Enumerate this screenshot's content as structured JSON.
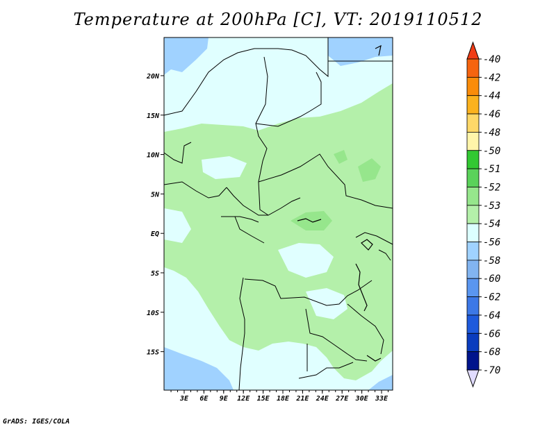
{
  "title": "Temperature at 200hPa [C], VT: 2019110512",
  "credit": "GrADS: IGES/COLA",
  "colors": {
    "background": "#e0ffff",
    "land": "#000000"
  },
  "lat_ticks": [
    "20N",
    "15N",
    "10N",
    "5N",
    "EQ",
    "5S",
    "10S",
    "15S"
  ],
  "lon_ticks": [
    "3E",
    "6E",
    "9E",
    "12E",
    "15E",
    "18E",
    "21E",
    "24E",
    "27E",
    "30E",
    "33E"
  ],
  "colorbar": {
    "labels": [
      "-40",
      "-42",
      "-44",
      "-46",
      "-48",
      "-50",
      "-51",
      "-52",
      "-53",
      "-54",
      "-56",
      "-58",
      "-60",
      "-62",
      "-64",
      "-66",
      "-68",
      "-70"
    ],
    "colors": [
      "#f03c16",
      "#f5640f",
      "#fa8c0a",
      "#fbb21e",
      "#fed868",
      "#fff5aa",
      "#32c832",
      "#5ad25a",
      "#96e68c",
      "#b4f0aa",
      "#dcffff",
      "#a0d2ff",
      "#82b4f0",
      "#5a96f0",
      "#3c78e6",
      "#1e5adc",
      "#0a3cbe",
      "#00148c",
      "#e1dcff"
    ]
  }
}
